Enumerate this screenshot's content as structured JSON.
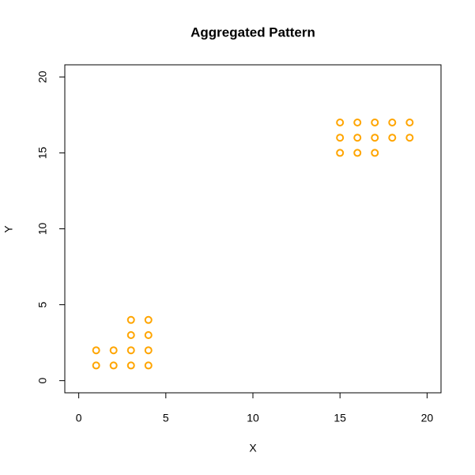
{
  "chart_data": {
    "type": "scatter",
    "title": "Aggregated Pattern",
    "x_label": "X",
    "y_label": "Y",
    "series": [
      {
        "color": "#ffa500",
        "x": [
          1,
          1,
          2,
          2,
          3,
          3,
          3,
          3,
          4,
          4,
          4,
          4,
          15,
          15,
          15,
          16,
          16,
          16,
          17,
          17,
          17,
          18,
          18,
          19,
          19
        ],
        "values": [
          1,
          2,
          1,
          2,
          1,
          2,
          3,
          4,
          1,
          2,
          3,
          4,
          15,
          16,
          17,
          15,
          16,
          17,
          15,
          16,
          17,
          16,
          17,
          16,
          17
        ]
      }
    ],
    "xlim": [
      -0.8,
      20.8
    ],
    "ylim": [
      -0.8,
      20.8
    ],
    "xticks": [
      0,
      5,
      10,
      15,
      20
    ],
    "yticks": [
      0,
      5,
      10,
      15,
      20
    ],
    "grid": false
  }
}
